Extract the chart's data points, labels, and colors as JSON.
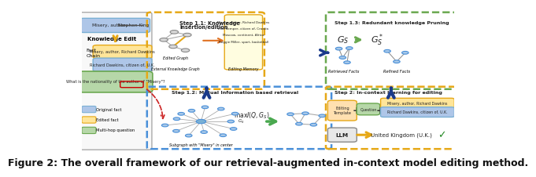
{
  "caption": "Figure 2: The overall framework of our retrieval-augmented in-context model editing method.",
  "caption_fontsize": 9,
  "fig_width": 6.4,
  "fig_height": 2.08,
  "bg_color": "#ffffff"
}
